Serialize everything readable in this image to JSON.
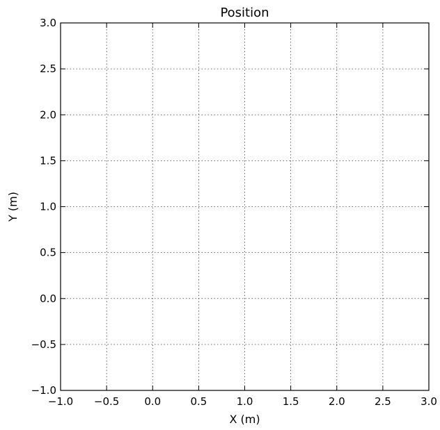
{
  "chart_data": {
    "type": "line",
    "title": "Position",
    "xlabel": "X (m)",
    "ylabel": "Y (m)",
    "xlim": [
      -1.0,
      3.0
    ],
    "ylim": [
      -1.0,
      3.0
    ],
    "xticks": [
      -1.0,
      -0.5,
      0.0,
      0.5,
      1.0,
      1.5,
      2.0,
      2.5,
      3.0
    ],
    "yticks": [
      -1.0,
      -0.5,
      0.0,
      0.5,
      1.0,
      1.5,
      2.0,
      2.5,
      3.0
    ],
    "xtick_labels": [
      "−1.0",
      "−0.5",
      "0.0",
      "0.5",
      "1.0",
      "1.5",
      "2.0",
      "2.5",
      "3.0"
    ],
    "ytick_labels": [
      "−1.0",
      "−0.5",
      "0.0",
      "0.5",
      "1.0",
      "1.5",
      "2.0",
      "2.5",
      "3.0"
    ],
    "grid": true,
    "series": []
  }
}
